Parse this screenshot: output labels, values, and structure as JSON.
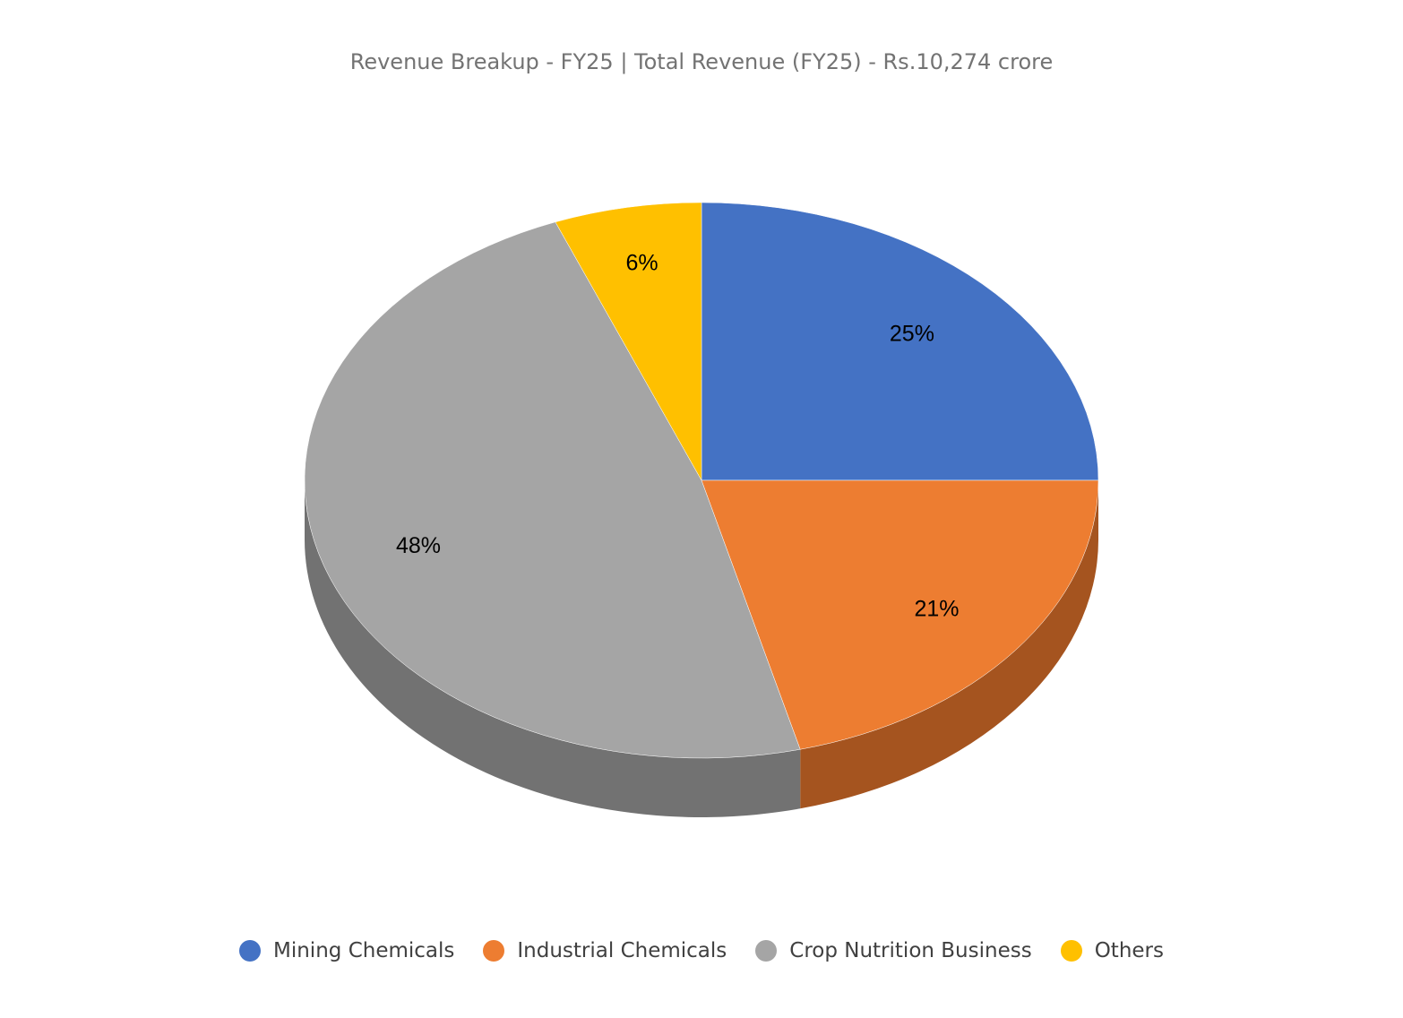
{
  "chart_data": {
    "type": "pie",
    "style": "3d",
    "title": "Revenue Breakup - FY25 | Total Revenue (FY25) - Rs.10,274 crore",
    "categories": [
      "Mining Chemicals",
      "Industrial Chemicals",
      "Crop Nutrition Business",
      "Others"
    ],
    "values": [
      25,
      21,
      48,
      6
    ],
    "data_labels": [
      "25%",
      "21%",
      "48%",
      "6%"
    ],
    "colors": [
      "#4472C4",
      "#ED7D31",
      "#A5A5A5",
      "#FFC000"
    ],
    "side_colors": [
      "#2F5597",
      "#A5541F",
      "#727272",
      "#BF9000"
    ],
    "legend_position": "bottom"
  }
}
